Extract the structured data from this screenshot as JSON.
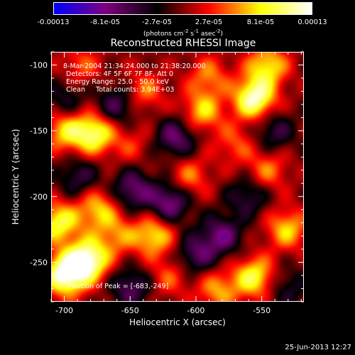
{
  "colorbar": {
    "tick_labels": [
      "-0.00013",
      "-8.1e-05",
      "-2.7e-05",
      "2.7e-05",
      "8.1e-05",
      "0.00013"
    ],
    "unit_base": "(photons cm",
    "unit_exp1": "-2",
    "unit_mid": " s",
    "unit_exp2": "-1",
    "unit_mid2": " asec",
    "unit_exp3": "-2",
    "unit_end": ")"
  },
  "chart_data": {
    "type": "heatmap",
    "title": "Reconstructed RHESSI Image",
    "xlabel": "Heliocentric X (arcsec)",
    "ylabel": "Heliocentric Y (arcsec)",
    "xlim": [
      -710,
      -518
    ],
    "ylim": [
      -280,
      -90
    ],
    "x_ticks": [
      -700,
      -650,
      -600,
      -550
    ],
    "y_ticks": [
      -100,
      -150,
      -200,
      -250
    ],
    "x_tick_labels": [
      "-700",
      "-650",
      "-600",
      "-550"
    ],
    "y_tick_labels": [
      "-100",
      "-150",
      "-200",
      "-250"
    ],
    "color_range": [
      -0.00013,
      0.00013
    ],
    "colormap": [
      "#0000ff",
      "#7f007f",
      "#000000",
      "#ff0000",
      "#ffff00",
      "#ffffff"
    ],
    "annotations": [
      "8-Mar-2004 21:34:24.000 to 21:38:20.000",
      "Detectors: 4F 5F 6F 7F 8F, Att 0",
      "Energy Range: 25.0 - 50.0 keV",
      "Clean     Total counts: 3.94E+03",
      "Position of Peak = [-683,-249]"
    ],
    "peak_position": [
      -683,
      -249
    ],
    "blobs": [
      {
        "x": -700,
        "y": -260,
        "value": 0.00013
      },
      {
        "x": -683,
        "y": -249,
        "value": 0.00013
      },
      {
        "x": -705,
        "y": -220,
        "value": 9e-05
      },
      {
        "x": -675,
        "y": -210,
        "value": 7e-05
      },
      {
        "x": -678,
        "y": -152,
        "value": 0.0001
      },
      {
        "x": -700,
        "y": -150,
        "value": 7e-05
      },
      {
        "x": -688,
        "y": -100,
        "value": 4e-05
      },
      {
        "x": -640,
        "y": -120,
        "value": 5e-05
      },
      {
        "x": -650,
        "y": -160,
        "value": 3e-05
      },
      {
        "x": -595,
        "y": -135,
        "value": 7e-05
      },
      {
        "x": -590,
        "y": -108,
        "value": 5e-05
      },
      {
        "x": -555,
        "y": -125,
        "value": 0.00012
      },
      {
        "x": -545,
        "y": -100,
        "value": 8e-05
      },
      {
        "x": -570,
        "y": -160,
        "value": 4e-05
      },
      {
        "x": -545,
        "y": -180,
        "value": 5e-05
      },
      {
        "x": -530,
        "y": -225,
        "value": 7e-05
      },
      {
        "x": -605,
        "y": -185,
        "value": 5e-05
      },
      {
        "x": -632,
        "y": -230,
        "value": 8e-05
      },
      {
        "x": -660,
        "y": -230,
        "value": 5e-05
      },
      {
        "x": -620,
        "y": -262,
        "value": 4e-05
      },
      {
        "x": -583,
        "y": -272,
        "value": 6e-05
      },
      {
        "x": -555,
        "y": -262,
        "value": 9e-05
      },
      {
        "x": -648,
        "y": -195,
        "value": -7e-05
      },
      {
        "x": -620,
        "y": -205,
        "value": -8e-05
      },
      {
        "x": -615,
        "y": -155,
        "value": -7e-05
      },
      {
        "x": -660,
        "y": -130,
        "value": -6e-05
      },
      {
        "x": -580,
        "y": -230,
        "value": -7e-05
      },
      {
        "x": -560,
        "y": -200,
        "value": -5e-05
      },
      {
        "x": -540,
        "y": -150,
        "value": -5e-05
      },
      {
        "x": -690,
        "y": -185,
        "value": -5e-05
      },
      {
        "x": -650,
        "y": -270,
        "value": -6e-05
      },
      {
        "x": -600,
        "y": -245,
        "value": -6e-05
      },
      {
        "x": -530,
        "y": -270,
        "value": -4e-05
      },
      {
        "x": -700,
        "y": -125,
        "value": -4e-05
      }
    ]
  },
  "footer": {
    "date": "25-Jun-2013 12:27"
  }
}
